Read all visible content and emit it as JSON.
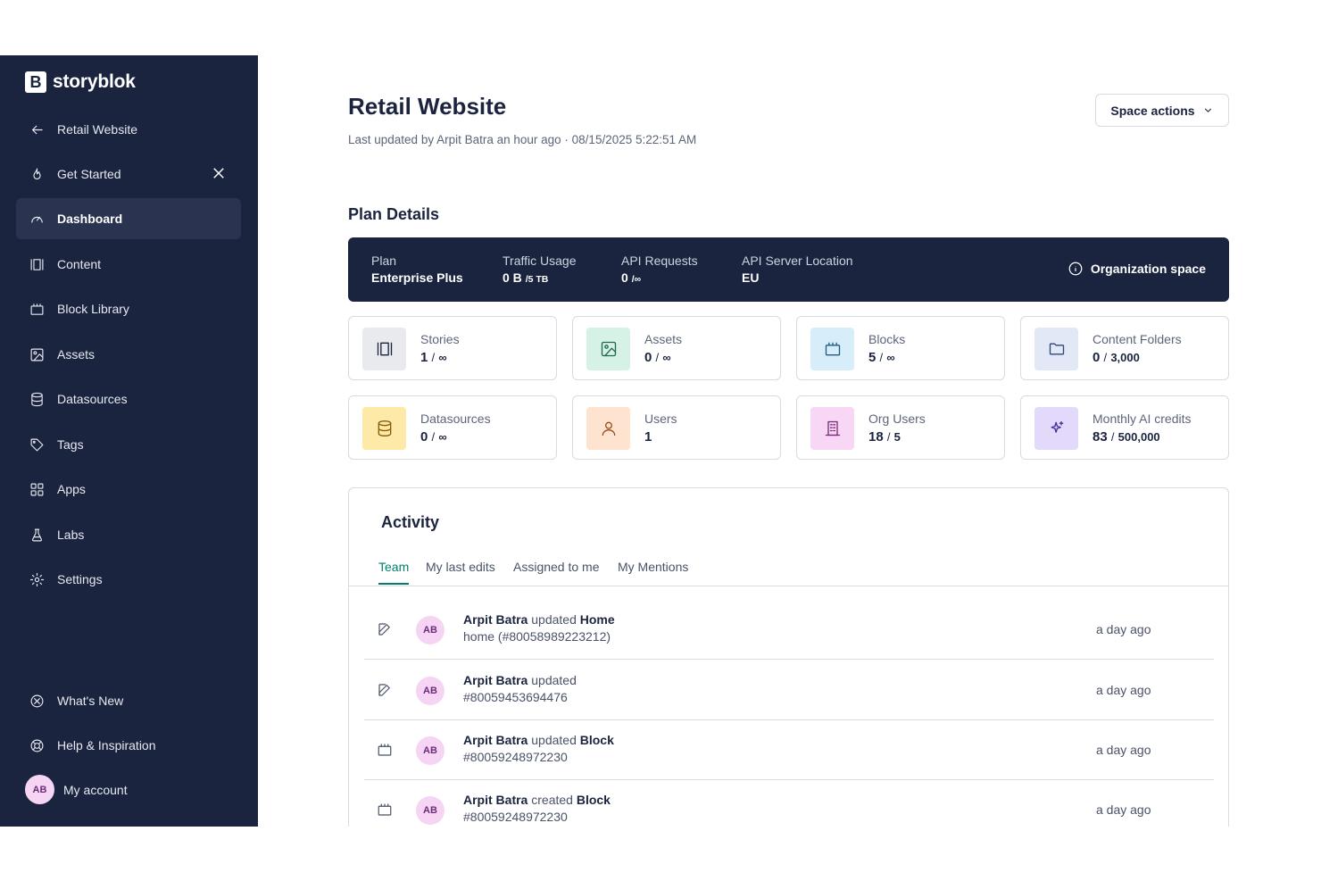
{
  "sidebar": {
    "brand": "storyblok",
    "brand_mark": "B",
    "items": [
      {
        "label": "Retail Website",
        "icon": "arrow-left-icon"
      },
      {
        "label": "Get Started",
        "icon": "flame-icon"
      },
      {
        "label": "Dashboard",
        "icon": "gauge-icon"
      },
      {
        "label": "Content",
        "icon": "content-icon"
      },
      {
        "label": "Block Library",
        "icon": "block-icon"
      },
      {
        "label": "Assets",
        "icon": "image-icon"
      },
      {
        "label": "Datasources",
        "icon": "database-icon"
      },
      {
        "label": "Tags",
        "icon": "tag-icon"
      },
      {
        "label": "Apps",
        "icon": "apps-grid-icon"
      },
      {
        "label": "Labs",
        "icon": "flask-icon"
      },
      {
        "label": "Settings",
        "icon": "gear-icon"
      },
      {
        "label": "What's New",
        "icon": "sparkle-icon"
      },
      {
        "label": "Help & Inspiration",
        "icon": "lifebuoy-icon"
      }
    ],
    "account": {
      "initials": "AB",
      "label": "My account"
    }
  },
  "header": {
    "title": "Retail Website",
    "subtitle": "Last updated by Arpit Batra an hour ago · 08/15/2025 5:22:51 AM",
    "space_actions": "Space actions"
  },
  "plan": {
    "heading": "Plan Details",
    "plan_label": "Plan",
    "plan_value": "Enterprise Plus",
    "traffic_label": "Traffic Usage",
    "traffic_value": "0 B",
    "traffic_limit": "/5 TB",
    "api_label": "API Requests",
    "api_value": "0",
    "api_limit": "/∞",
    "location_label": "API Server Location",
    "location_value": "EU",
    "org_space": "Organization space"
  },
  "stats": [
    {
      "label": "Stories",
      "value": "1",
      "limit": "∞"
    },
    {
      "label": "Assets",
      "value": "0",
      "limit": "∞"
    },
    {
      "label": "Blocks",
      "value": "5",
      "limit": "∞"
    },
    {
      "label": "Content Folders",
      "value": "0",
      "limit": "3,000"
    },
    {
      "label": "Datasources",
      "value": "0",
      "limit": "∞"
    },
    {
      "label": "Users",
      "value": "1",
      "limit": ""
    },
    {
      "label": "Org Users",
      "value": "18",
      "limit": "5"
    },
    {
      "label": "Monthly AI credits",
      "value": "83",
      "limit": "500,000"
    }
  ],
  "activity": {
    "title": "Activity",
    "tabs": [
      "Team",
      "My last edits",
      "Assigned to me",
      "My Mentions"
    ],
    "rows": [
      {
        "user": "Arpit Batra",
        "action": "updated",
        "target": "Home",
        "detail": "home (#80058989223212)",
        "time": "a day ago",
        "initials": "AB"
      },
      {
        "user": "Arpit Batra",
        "action": "updated",
        "target": "",
        "detail": "#80059453694476",
        "time": "a day ago",
        "initials": "AB"
      },
      {
        "user": "Arpit Batra",
        "action": "updated",
        "target": "Block",
        "detail": "#80059248972230",
        "time": "a day ago",
        "initials": "AB"
      },
      {
        "user": "Arpit Batra",
        "action": "created",
        "target": "Block",
        "detail": "#80059248972230",
        "time": "a day ago",
        "initials": "AB"
      }
    ]
  }
}
